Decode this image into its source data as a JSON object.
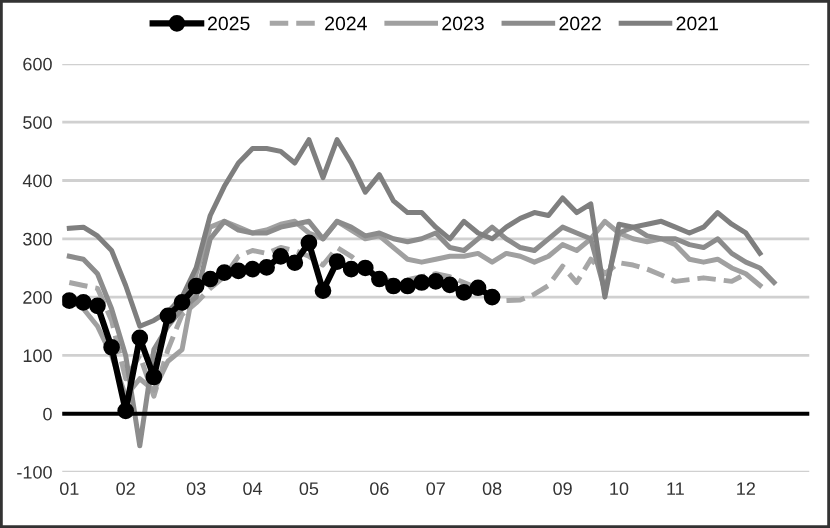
{
  "chart_data": {
    "type": "line",
    "categories": [
      "01",
      null,
      null,
      null,
      "02",
      null,
      null,
      null,
      null,
      "03",
      null,
      null,
      null,
      "04",
      null,
      null,
      null,
      "05",
      null,
      null,
      null,
      null,
      "06",
      null,
      null,
      null,
      "07",
      null,
      null,
      null,
      "08",
      null,
      null,
      null,
      null,
      "09",
      null,
      null,
      null,
      "10",
      null,
      null,
      null,
      "11",
      null,
      null,
      null,
      null,
      "12",
      null,
      null,
      null,
      null
    ],
    "series": [
      {
        "name": "2025",
        "color": "#000000",
        "marker": "circle",
        "line_style": "solid",
        "values": [
          194,
          191,
          185,
          114,
          5,
          130,
          63,
          168,
          191,
          219,
          231,
          242,
          245,
          248,
          251,
          270,
          259,
          293,
          211,
          261,
          248,
          250,
          231,
          219,
          219,
          225,
          227,
          221,
          208,
          216,
          200,
          null,
          null,
          null,
          null,
          null,
          null,
          null,
          null,
          null,
          null,
          null,
          null,
          null,
          null,
          null,
          null,
          null,
          null,
          null,
          null,
          null,
          null
        ]
      },
      {
        "name": "2024",
        "color": "#a6a6a6",
        "line_style": "dashed",
        "values": [
          225,
          220,
          215,
          160,
          60,
          100,
          30,
          110,
          170,
          190,
          215,
          235,
          270,
          280,
          275,
          285,
          280,
          270,
          255,
          285,
          270,
          250,
          235,
          225,
          230,
          235,
          240,
          235,
          225,
          215,
          198,
          194,
          195,
          205,
          220,
          253,
          225,
          265,
          240,
          259,
          255,
          248,
          238,
          227,
          230,
          233,
          230,
          227,
          240,
          null,
          null,
          null,
          null
        ]
      },
      {
        "name": "2023",
        "color": "#a0a0a0",
        "line_style": "solid",
        "values": [
          195,
          180,
          150,
          100,
          30,
          60,
          40,
          90,
          110,
          240,
          320,
          330,
          320,
          310,
          315,
          325,
          330,
          310,
          300,
          330,
          315,
          300,
          305,
          285,
          265,
          260,
          265,
          270,
          270,
          275,
          260,
          275,
          270,
          260,
          270,
          290,
          280,
          300,
          330,
          310,
          300,
          295,
          300,
          290,
          265,
          260,
          265,
          250,
          240,
          220,
          null,
          null,
          null
        ]
      },
      {
        "name": "2022",
        "color": "#8c8c8c",
        "line_style": "solid",
        "values": [
          270,
          265,
          240,
          180,
          100,
          -55,
          110,
          150,
          180,
          200,
          300,
          330,
          315,
          310,
          310,
          320,
          325,
          330,
          300,
          330,
          320,
          305,
          310,
          300,
          295,
          300,
          310,
          285,
          280,
          300,
          320,
          300,
          285,
          280,
          300,
          320,
          310,
          300,
          210,
          310,
          320,
          305,
          300,
          300,
          290,
          285,
          300,
          275,
          260,
          250,
          225,
          null,
          null
        ]
      },
      {
        "name": "2021",
        "color": "#7f7f7f",
        "line_style": "solid",
        "values": [
          318,
          320,
          305,
          280,
          220,
          150,
          160,
          175,
          200,
          250,
          340,
          390,
          430,
          455,
          455,
          450,
          430,
          470,
          405,
          470,
          430,
          380,
          410,
          365,
          345,
          345,
          320,
          300,
          330,
          310,
          300,
          320,
          335,
          345,
          340,
          370,
          345,
          360,
          200,
          325,
          320,
          325,
          330,
          320,
          310,
          320,
          345,
          325,
          310,
          275,
          null,
          null,
          null
        ]
      }
    ],
    "ylim": [
      -100,
      600
    ],
    "yticks": [
      -100,
      0,
      100,
      200,
      300,
      400,
      500,
      600
    ],
    "grid": "y",
    "legend": "top",
    "ref_lines": [
      {
        "axis": "y",
        "value": 0,
        "color": "#000000",
        "line_style": "solid"
      }
    ]
  }
}
